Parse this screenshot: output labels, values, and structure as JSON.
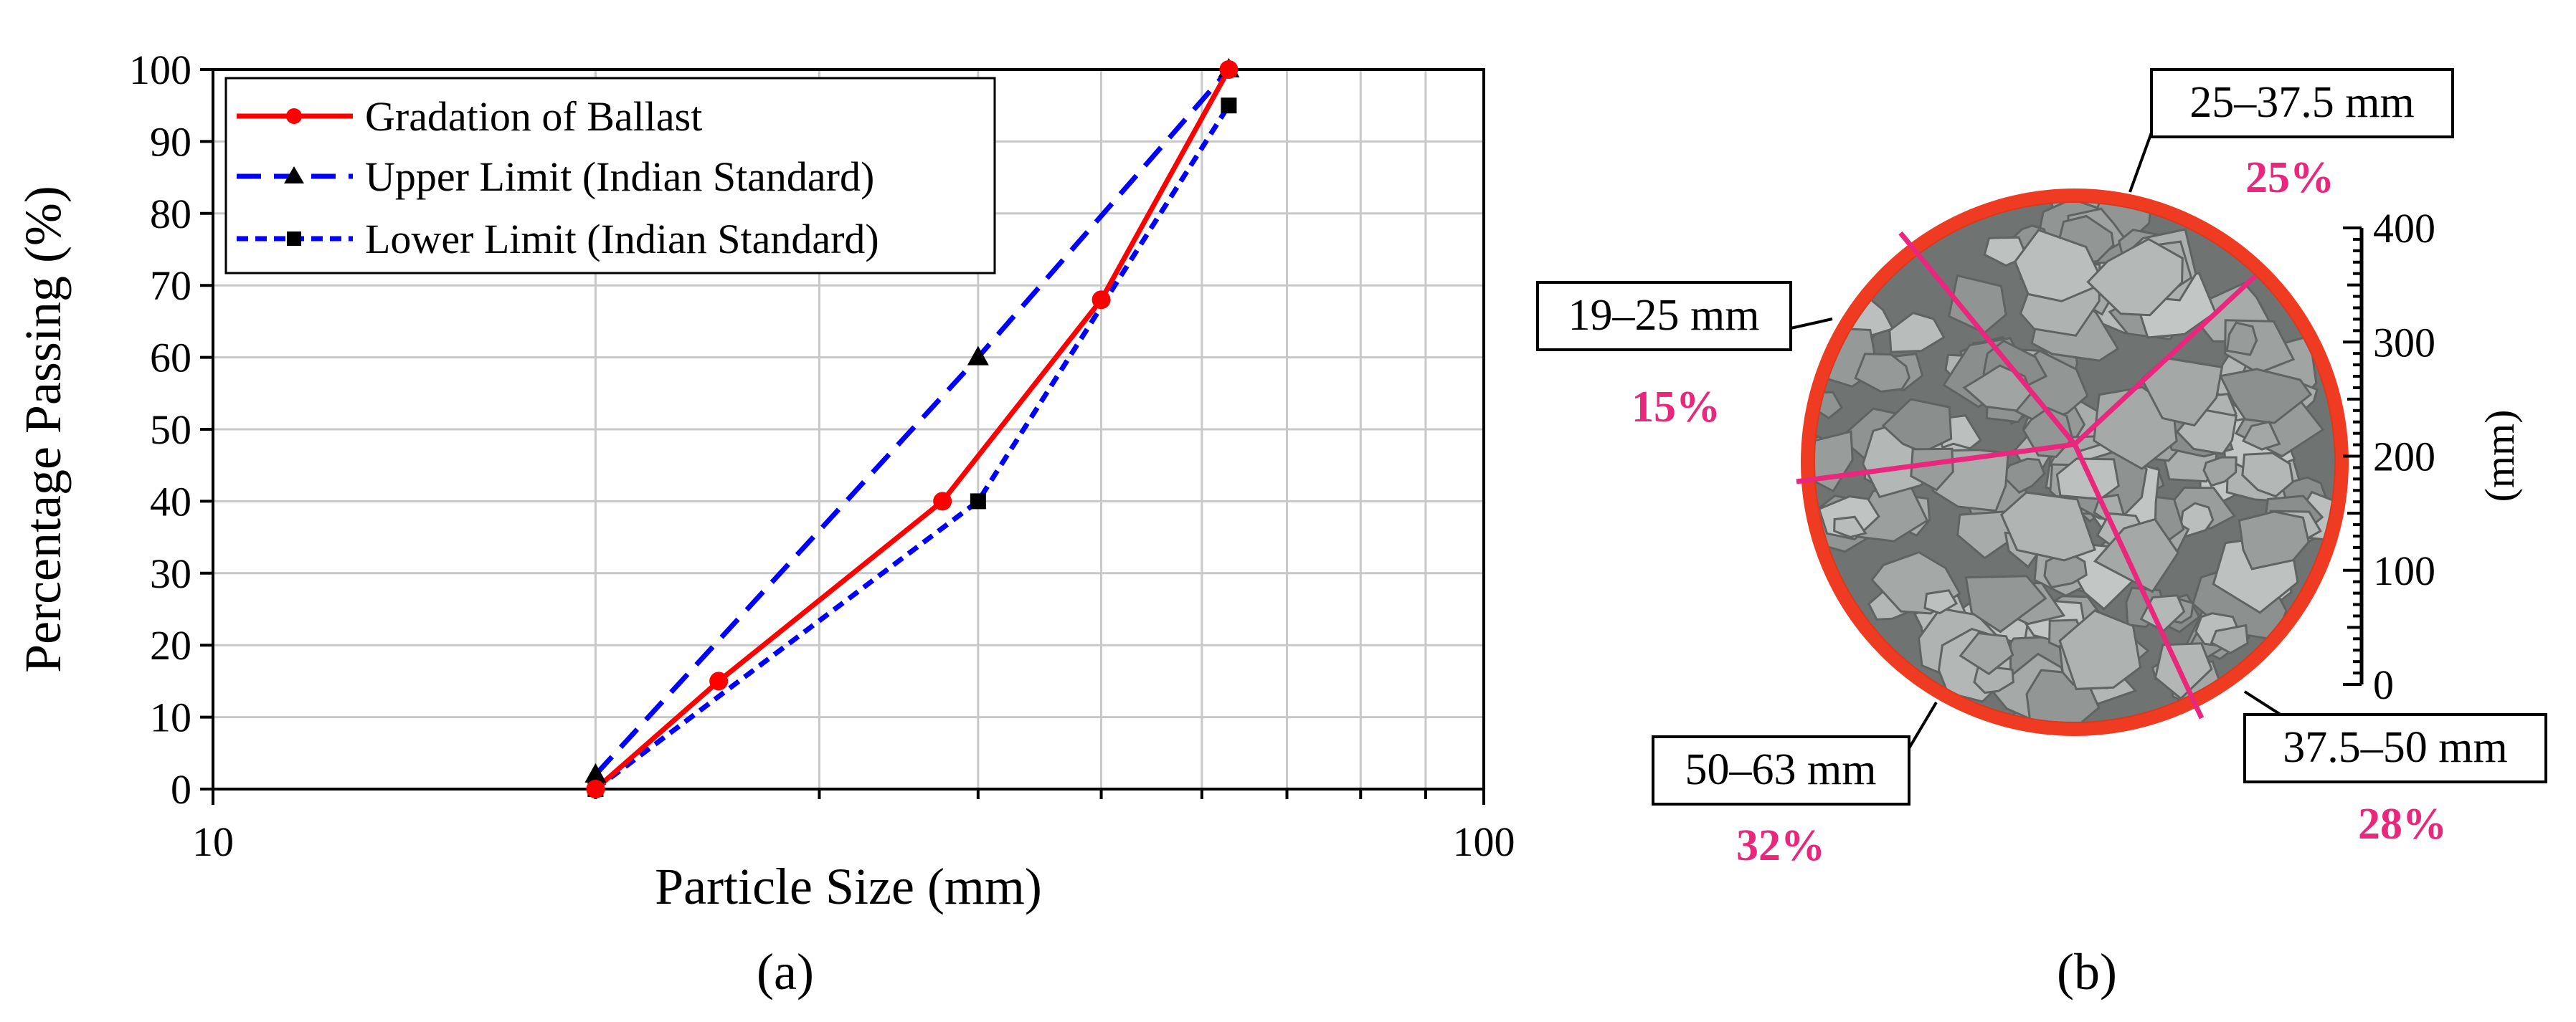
{
  "chart_data": [
    {
      "type": "line",
      "caption": "(a)",
      "xlabel": "Particle Size (mm)",
      "ylabel": "Percentage Passing (%)",
      "xscale": "log",
      "xlim": [
        10,
        100
      ],
      "ylim": [
        0,
        100
      ],
      "xticks": [
        "10",
        "100"
      ],
      "yticks": [
        "0",
        "10",
        "20",
        "30",
        "40",
        "50",
        "60",
        "70",
        "80",
        "90",
        "100"
      ],
      "grid": true,
      "legend_position": "top-left",
      "series": [
        {
          "name": "Gradation of Ballast",
          "color": "#ff0000",
          "style": "solid",
          "marker": "circle",
          "x": [
            20,
            25,
            37.5,
            50,
            63
          ],
          "y": [
            0,
            15,
            40,
            68,
            100
          ]
        },
        {
          "name": "Upper Limit (Indian Standard)",
          "color": "#0000ff",
          "style": "dashed",
          "marker": "triangle",
          "x": [
            20,
            40,
            63
          ],
          "y": [
            2,
            60,
            100
          ]
        },
        {
          "name": "Lower Limit (Indian Standard)",
          "color": "#0000ff",
          "style": "dotted",
          "marker": "square",
          "x": [
            20,
            40,
            63
          ],
          "y": [
            0,
            40,
            95
          ]
        }
      ]
    },
    {
      "type": "pie",
      "caption": "(b)",
      "description_label": "Photo of ballast sample divided by size fraction",
      "categories": [
        "25–37.5 mm",
        "37.5–50 mm",
        "50–63 mm",
        "19–25 mm"
      ],
      "values": [
        25,
        28,
        32,
        15
      ],
      "value_labels": [
        "25%",
        "28%",
        "32%",
        "15%"
      ],
      "scale_axis": {
        "label": "(mm)",
        "ticks": [
          "0",
          "100",
          "200",
          "300",
          "400"
        ],
        "range": [
          0,
          400
        ]
      }
    }
  ],
  "colors": {
    "gradation": "#ff0000",
    "limits": "#0000ff",
    "percent_text": "#e8277d",
    "dish": "#ef3b22"
  }
}
